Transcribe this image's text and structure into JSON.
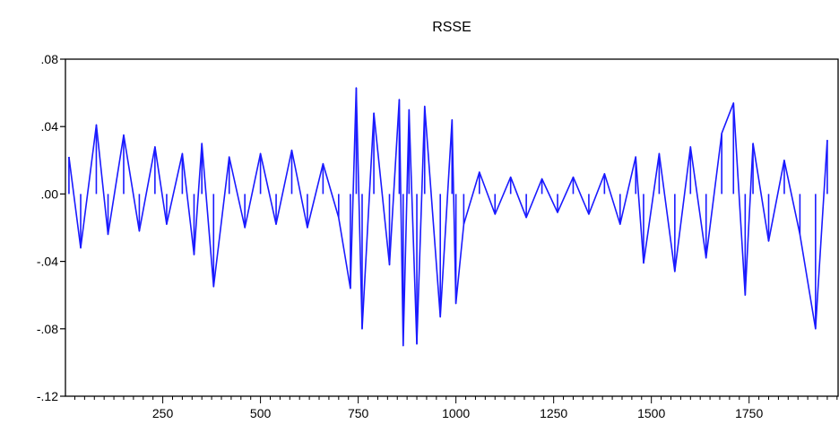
{
  "chart_data": {
    "type": "line",
    "title": "RSSE",
    "xlabel": "",
    "ylabel": "",
    "xlim": [
      1,
      1980
    ],
    "ylim": [
      -0.12,
      0.08
    ],
    "x_ticks": [
      250,
      500,
      750,
      1000,
      1250,
      1500,
      1750
    ],
    "x_tick_labels": [
      "250",
      "500",
      "750",
      "1000",
      "1250",
      "1500",
      "1750"
    ],
    "y_ticks": [
      0.08,
      0.04,
      0.0,
      -0.04,
      -0.08,
      -0.12
    ],
    "y_tick_labels": [
      ".08",
      ".04",
      ".00",
      "-.04",
      "-.08",
      "-.12"
    ],
    "grid": false,
    "legend": "none",
    "series_color": "#1a1aff",
    "series": [
      {
        "x": [
          10,
          40,
          80,
          110,
          150,
          190,
          230,
          260,
          300,
          330,
          350,
          380,
          420,
          460,
          500,
          540,
          580,
          620,
          660,
          700,
          730,
          745,
          760,
          790,
          830,
          855,
          865,
          880,
          900,
          920,
          960,
          990,
          1000,
          1020,
          1060,
          1100,
          1140,
          1180,
          1220,
          1260,
          1300,
          1340,
          1380,
          1420,
          1460,
          1480,
          1520,
          1560,
          1600,
          1640,
          1680,
          1710,
          1740,
          1760,
          1800,
          1840,
          1880,
          1920,
          1950
        ],
        "y": [
          0.022,
          -0.032,
          0.041,
          -0.024,
          0.035,
          -0.022,
          0.028,
          -0.018,
          0.024,
          -0.036,
          0.03,
          -0.055,
          0.022,
          -0.02,
          0.024,
          -0.018,
          0.026,
          -0.02,
          0.018,
          -0.014,
          -0.056,
          0.063,
          -0.08,
          0.048,
          -0.042,
          0.056,
          -0.09,
          0.05,
          -0.089,
          0.052,
          -0.073,
          0.044,
          -0.065,
          -0.018,
          0.013,
          -0.012,
          0.01,
          -0.014,
          0.009,
          -0.011,
          0.01,
          -0.012,
          0.012,
          -0.018,
          0.022,
          -0.041,
          0.024,
          -0.046,
          0.028,
          -0.038,
          0.036,
          0.054,
          -0.06,
          0.03,
          -0.028,
          0.02,
          -0.024,
          -0.08,
          0.032
        ]
      }
    ]
  }
}
